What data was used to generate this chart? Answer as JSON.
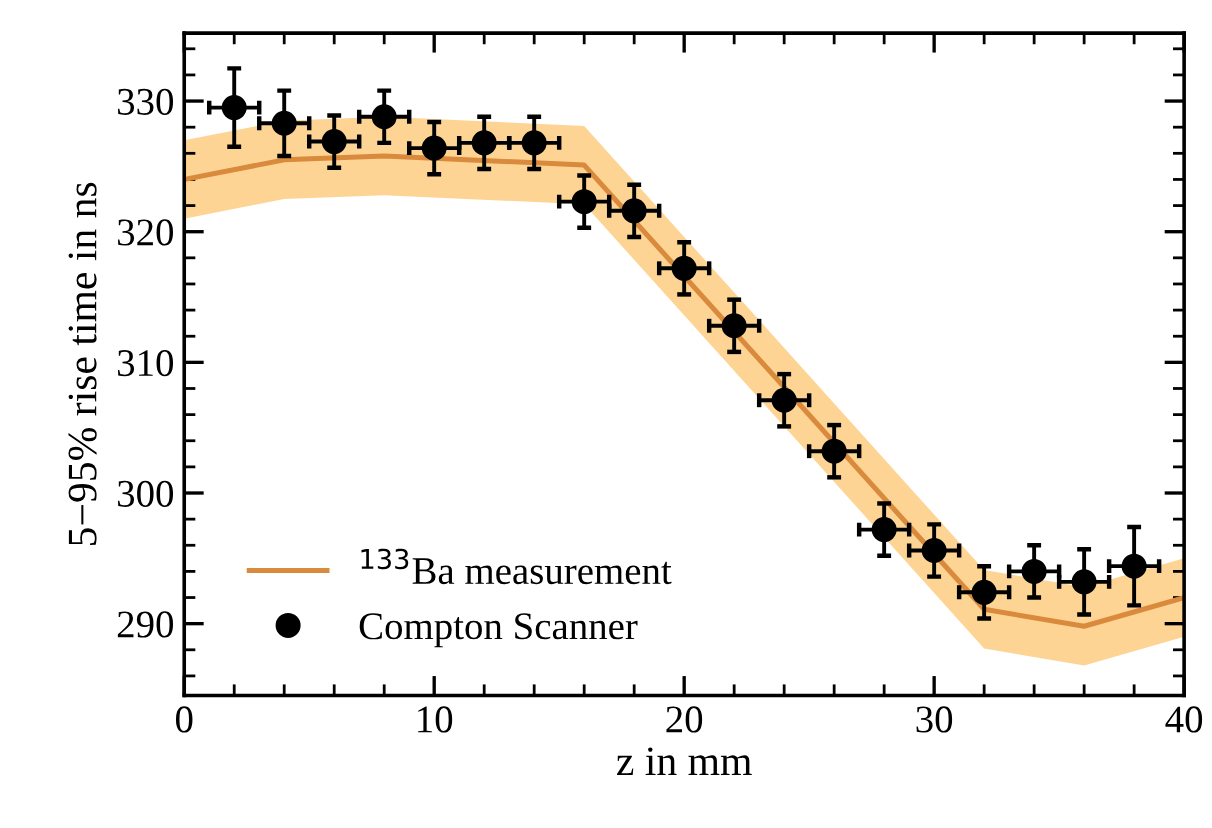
{
  "chart_data": {
    "type": "line",
    "xlabel": "z in mm",
    "ylabel": "5−95% rise time in ns",
    "xlim": [
      0,
      40
    ],
    "xticks": [
      0,
      10,
      20,
      30,
      40
    ],
    "ylim": [
      284.5,
      335.2
    ],
    "yticks": [
      290,
      300,
      310,
      320,
      330
    ],
    "legend": "bottom left",
    "grid": false,
    "series": [
      {
        "name": "$^{133}$Ba measurement",
        "color": "#d98a3c",
        "marker": "none",
        "line_style": "solid",
        "x": [
          0,
          4,
          8,
          16,
          32,
          36,
          40
        ],
        "values": [
          324.0,
          325.5,
          325.8,
          325.1,
          291.1,
          289.8,
          292.0
        ],
        "lower": [
          321.0,
          322.5,
          322.8,
          322.1,
          288.1,
          286.8,
          289.0
        ],
        "upper": [
          327.0,
          328.5,
          328.8,
          328.1,
          294.1,
          292.8,
          295.0
        ]
      },
      {
        "name": "Compton Scanner",
        "type": "scatter",
        "color": "#000000",
        "marker": "circle",
        "x": [
          2,
          4,
          6,
          8,
          10,
          12,
          14,
          16,
          18,
          20,
          22,
          24,
          26,
          28,
          30,
          32,
          34,
          36,
          38
        ],
        "values": [
          329.5,
          328.3,
          326.9,
          328.8,
          326.4,
          326.8,
          326.8,
          322.3,
          321.6,
          317.2,
          312.8,
          307.1,
          303.2,
          297.2,
          295.6,
          292.4,
          294.0,
          293.2,
          294.4
        ],
        "errors": [
          3,
          2.5,
          2,
          2,
          2,
          2,
          2,
          2,
          2,
          2,
          2,
          2,
          2,
          2,
          2,
          2,
          2,
          2.5,
          3
        ],
        "xerrors": [
          1,
          1,
          1,
          1,
          1,
          1,
          1,
          1,
          1,
          1,
          1,
          1,
          1,
          1,
          1,
          1,
          1,
          1,
          1
        ]
      }
    ]
  }
}
